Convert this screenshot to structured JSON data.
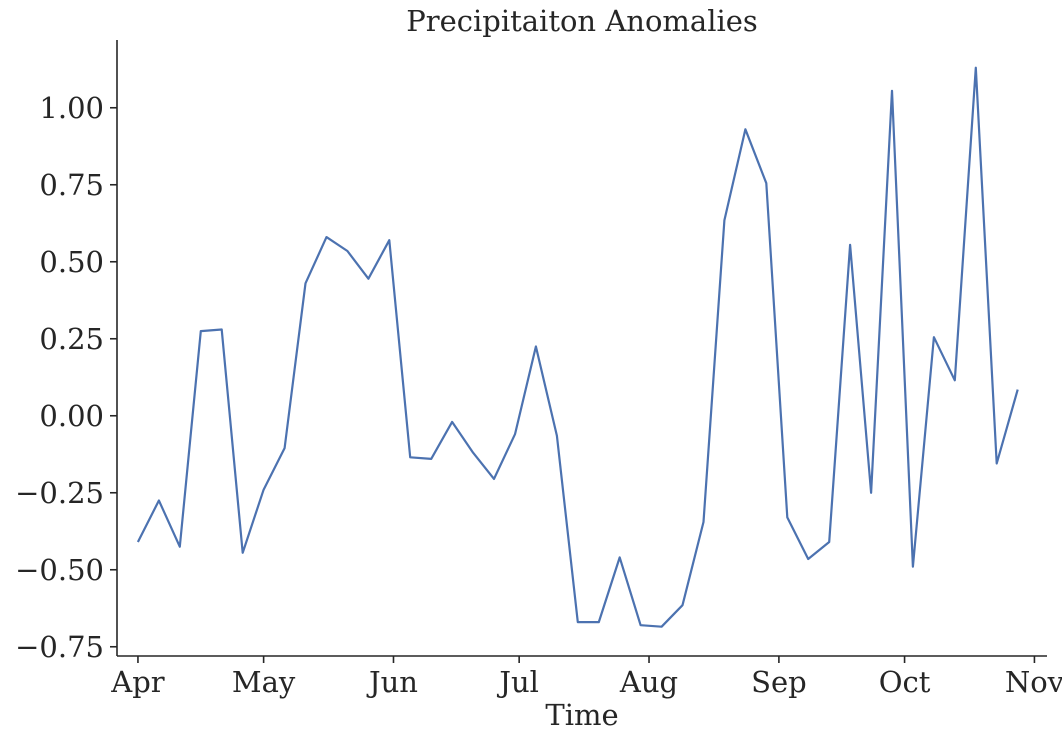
{
  "chart_data": {
    "type": "line",
    "title": "Precipitaiton Anomalies",
    "xlabel": "Time",
    "ylabel": "",
    "x_tick_labels": [
      "Apr",
      "May",
      "Jun",
      "Jul",
      "Aug",
      "Sep",
      "Oct",
      "Nov"
    ],
    "y_tick_labels": [
      "−0.75",
      "−0.50",
      "−0.25",
      "0.00",
      "0.25",
      "0.50",
      "0.75",
      "1.00"
    ],
    "y_ticks": [
      -0.75,
      -0.5,
      -0.25,
      0.0,
      0.25,
      0.5,
      0.75,
      1.0
    ],
    "ylim": [
      -0.78,
      1.22
    ],
    "xlim": [
      "2023-03-27",
      "2023-11-04"
    ],
    "x_tick_dates": [
      "2023-04-01",
      "2023-05-01",
      "2023-06-01",
      "2023-07-01",
      "2023-08-01",
      "2023-09-01",
      "2023-10-01",
      "2023-11-01"
    ],
    "grid": false,
    "line_color": "#4c72b0",
    "series": [
      {
        "x": [
          "2023-04-01",
          "2023-04-06",
          "2023-04-11",
          "2023-04-16",
          "2023-04-21",
          "2023-04-26",
          "2023-05-01",
          "2023-05-06",
          "2023-05-11",
          "2023-05-16",
          "2023-05-21",
          "2023-05-26",
          "2023-05-31",
          "2023-06-05",
          "2023-06-10",
          "2023-06-15",
          "2023-06-20",
          "2023-06-25",
          "2023-06-30",
          "2023-07-05",
          "2023-07-10",
          "2023-07-15",
          "2023-07-20",
          "2023-07-25",
          "2023-07-30",
          "2023-08-04",
          "2023-08-09",
          "2023-08-14",
          "2023-08-19",
          "2023-08-24",
          "2023-08-29",
          "2023-09-03",
          "2023-09-08",
          "2023-09-13",
          "2023-09-18",
          "2023-09-23",
          "2023-09-28",
          "2023-10-03",
          "2023-10-08",
          "2023-10-13",
          "2023-10-18",
          "2023-10-23",
          "2023-10-28"
        ],
        "values": [
          -0.41,
          -0.275,
          -0.425,
          0.275,
          0.28,
          -0.445,
          -0.24,
          -0.105,
          0.43,
          0.58,
          0.535,
          0.445,
          0.57,
          -0.135,
          -0.14,
          -0.02,
          -0.12,
          -0.205,
          -0.06,
          0.225,
          -0.065,
          -0.67,
          -0.67,
          -0.46,
          -0.68,
          -0.685,
          -0.615,
          -0.345,
          0.635,
          0.93,
          0.755,
          -0.33,
          -0.465,
          -0.41,
          0.555,
          -0.25,
          1.055,
          -0.49,
          0.255,
          0.115,
          1.13,
          -0.155,
          0.085
        ]
      }
    ]
  }
}
